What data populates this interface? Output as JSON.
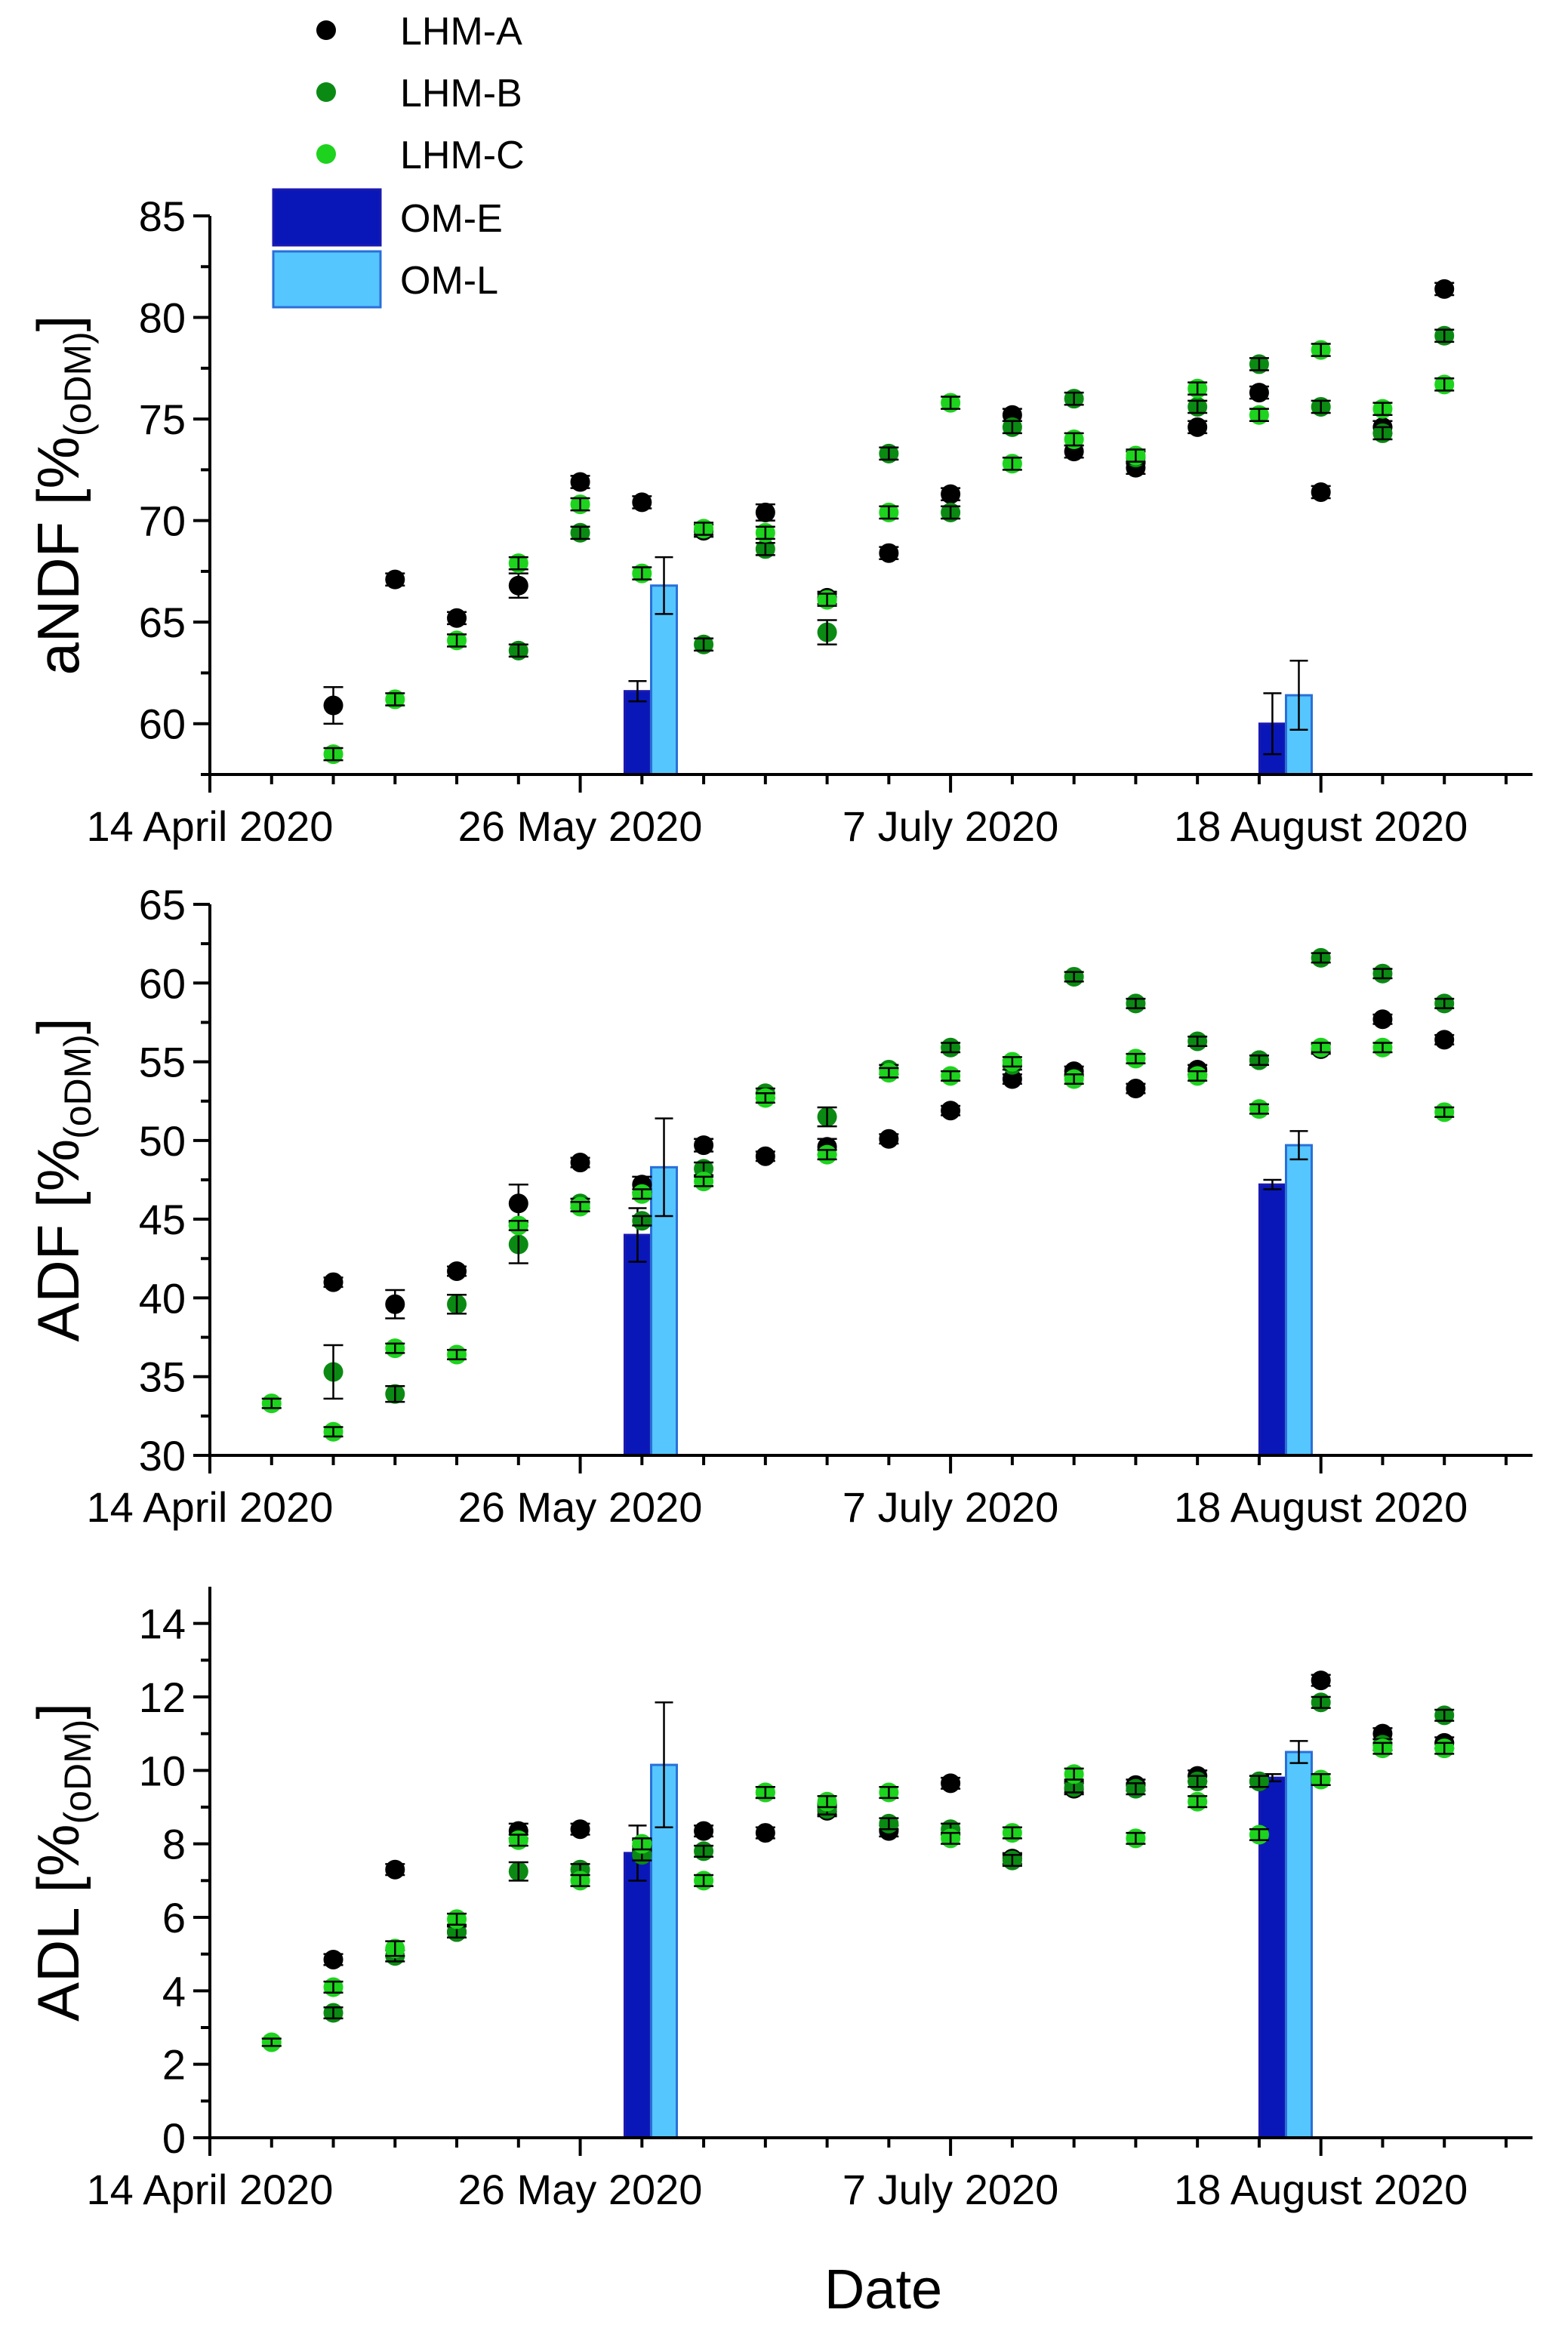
{
  "colors": {
    "LHM-A": "#000000",
    "LHM-B": "#0b8a13",
    "LHM-C": "#1dd31d",
    "OM-E": "#0a17b8",
    "OM-L": "#56c6ff",
    "OM-E-edge": "#1a1ab0",
    "OM-L-edge": "#2a6fd8"
  },
  "legend": {
    "items": [
      {
        "key": "LHM-A",
        "label": "LHM-A",
        "kind": "point"
      },
      {
        "key": "LHM-B",
        "label": "LHM-B",
        "kind": "point"
      },
      {
        "key": "LHM-C",
        "label": "LHM-C",
        "kind": "point"
      },
      {
        "key": "OM-E",
        "label": "OM-E",
        "kind": "bar"
      },
      {
        "key": "OM-L",
        "label": "OM-L",
        "kind": "bar"
      }
    ]
  },
  "x_axis": {
    "title": "Date",
    "tick_labels": [
      "14 April 2020",
      "26 May 2020",
      "7 July 2020",
      "18 August 2020"
    ],
    "major_days": [
      0,
      42,
      84,
      126
    ],
    "minor_days": [
      7,
      14,
      21,
      28,
      35,
      49,
      56,
      63,
      70,
      77,
      91,
      98,
      105,
      112,
      119,
      133,
      140,
      147
    ],
    "xlim_days": [
      0,
      150
    ],
    "day0": "14 April 2020",
    "note": "x values are days since 14 April 2020"
  },
  "chart_data": [
    {
      "type": "scatter",
      "id": "andf",
      "title": "",
      "ylabel_main": "aNDF [%",
      "ylabel_sub": "(oDM)",
      "ylabel_close": "]",
      "ylim": [
        57.5,
        85
      ],
      "yticks": [
        60,
        65,
        70,
        75,
        80,
        85
      ],
      "yticks_minor": [
        57.5,
        62.5,
        67.5,
        72.5,
        77.5,
        82.5
      ],
      "series": [
        {
          "name": "LHM-A",
          "points": [
            [
              14,
              60.9,
              0.9
            ],
            [
              21,
              67.1,
              0.3
            ],
            [
              28,
              65.2,
              0.3
            ],
            [
              35,
              66.8,
              0.6
            ],
            [
              42,
              71.9,
              0.3
            ],
            [
              49,
              70.9,
              0.3
            ],
            [
              56,
              69.5,
              0.3
            ],
            [
              63,
              70.4,
              0.4
            ],
            [
              70,
              66.2,
              0.3
            ],
            [
              77,
              68.4,
              0.3
            ],
            [
              84,
              71.3,
              0.3
            ],
            [
              91,
              75.2,
              0.3
            ],
            [
              98,
              73.4,
              0.3
            ],
            [
              105,
              72.6,
              0.3
            ],
            [
              112,
              74.6,
              0.3
            ],
            [
              119,
              76.3,
              0.3
            ],
            [
              126,
              71.4,
              0.3
            ],
            [
              133,
              74.6,
              0.3
            ],
            [
              140,
              81.4,
              0.3
            ]
          ]
        },
        {
          "name": "LHM-B",
          "points": [
            [
              35,
              63.6,
              0.3
            ],
            [
              42,
              69.4,
              0.3
            ],
            [
              56,
              63.9,
              0.3
            ],
            [
              63,
              68.6,
              0.3
            ],
            [
              70,
              64.5,
              0.6
            ],
            [
              77,
              73.3,
              0.3
            ],
            [
              84,
              70.4,
              0.3
            ],
            [
              91,
              74.6,
              0.3
            ],
            [
              98,
              76.0,
              0.3
            ],
            [
              105,
              73.1,
              0.3
            ],
            [
              112,
              75.6,
              0.3
            ],
            [
              119,
              77.7,
              0.3
            ],
            [
              126,
              75.6,
              0.3
            ],
            [
              133,
              74.3,
              0.3
            ],
            [
              140,
              79.1,
              0.3
            ]
          ]
        },
        {
          "name": "LHM-C",
          "points": [
            [
              14,
              58.5,
              0.3
            ],
            [
              21,
              61.2,
              0.3
            ],
            [
              28,
              64.1,
              0.3
            ],
            [
              35,
              67.9,
              0.3
            ],
            [
              42,
              70.8,
              0.3
            ],
            [
              49,
              67.4,
              0.3
            ],
            [
              56,
              69.6,
              0.3
            ],
            [
              63,
              69.4,
              0.3
            ],
            [
              70,
              66.1,
              0.3
            ],
            [
              77,
              70.4,
              0.3
            ],
            [
              84,
              75.8,
              0.3
            ],
            [
              91,
              72.8,
              0.3
            ],
            [
              98,
              74.0,
              0.3
            ],
            [
              105,
              73.2,
              0.3
            ],
            [
              112,
              76.5,
              0.3
            ],
            [
              119,
              75.2,
              0.3
            ],
            [
              126,
              78.4,
              0.3
            ],
            [
              133,
              75.5,
              0.3
            ],
            [
              140,
              76.7,
              0.3
            ]
          ]
        },
        {
          "name": "OM-E",
          "kind": "bar",
          "points": [
            [
              48.5,
              61.6,
              0.5
            ],
            [
              120.5,
              60.0,
              1.5
            ]
          ]
        },
        {
          "name": "OM-L",
          "kind": "bar",
          "points": [
            [
              51.5,
              66.8,
              1.4
            ],
            [
              123.5,
              61.4,
              1.7
            ]
          ]
        }
      ]
    },
    {
      "type": "scatter",
      "id": "adf",
      "title": "",
      "ylabel_main": "ADF [%",
      "ylabel_sub": "(oDM)",
      "ylabel_close": "]",
      "ylim": [
        30,
        65
      ],
      "yticks": [
        30,
        35,
        40,
        45,
        50,
        55,
        60,
        65
      ],
      "yticks_minor": [
        32.5,
        37.5,
        42.5,
        47.5,
        52.5,
        57.5,
        62.5
      ],
      "series": [
        {
          "name": "LHM-A",
          "points": [
            [
              14,
              41.0,
              0.3
            ],
            [
              21,
              39.6,
              0.9
            ],
            [
              28,
              41.7,
              0.3
            ],
            [
              35,
              46.0,
              1.2
            ],
            [
              42,
              48.6,
              0.3
            ],
            [
              49,
              47.2,
              0.5
            ],
            [
              56,
              49.7,
              0.4
            ],
            [
              63,
              49.0,
              0.3
            ],
            [
              70,
              49.6,
              0.5
            ],
            [
              77,
              50.1,
              0.3
            ],
            [
              84,
              51.9,
              0.3
            ],
            [
              91,
              53.9,
              0.3
            ],
            [
              98,
              54.4,
              0.3
            ],
            [
              105,
              53.3,
              0.3
            ],
            [
              112,
              54.5,
              0.3
            ],
            [
              119,
              55.1,
              0.3
            ],
            [
              126,
              55.8,
              0.3
            ],
            [
              133,
              57.7,
              0.3
            ],
            [
              140,
              56.4,
              0.3
            ]
          ]
        },
        {
          "name": "LHM-B",
          "points": [
            [
              14,
              35.3,
              1.7
            ],
            [
              21,
              33.9,
              0.5
            ],
            [
              28,
              39.6,
              0.6
            ],
            [
              35,
              43.4,
              1.2
            ],
            [
              42,
              46.0,
              0.3
            ],
            [
              49,
              44.9,
              0.3
            ],
            [
              56,
              48.2,
              0.4
            ],
            [
              63,
              53.0,
              0.3
            ],
            [
              70,
              51.5,
              0.6
            ],
            [
              77,
              54.5,
              0.3
            ],
            [
              84,
              55.9,
              0.3
            ],
            [
              91,
              54.8,
              0.3
            ],
            [
              98,
              60.4,
              0.3
            ],
            [
              105,
              58.7,
              0.3
            ],
            [
              112,
              56.3,
              0.3
            ],
            [
              119,
              55.1,
              0.3
            ],
            [
              126,
              61.6,
              0.3
            ],
            [
              133,
              60.6,
              0.3
            ],
            [
              140,
              58.7,
              0.3
            ]
          ]
        },
        {
          "name": "LHM-C",
          "points": [
            [
              7,
              33.3,
              0.3
            ],
            [
              14,
              31.5,
              0.3
            ],
            [
              21,
              36.8,
              0.3
            ],
            [
              28,
              36.4,
              0.3
            ],
            [
              35,
              44.6,
              0.3
            ],
            [
              42,
              45.8,
              0.3
            ],
            [
              49,
              46.6,
              0.3
            ],
            [
              56,
              47.4,
              0.3
            ],
            [
              63,
              52.7,
              0.3
            ],
            [
              70,
              49.1,
              0.3
            ],
            [
              77,
              54.3,
              0.3
            ],
            [
              84,
              54.1,
              0.3
            ],
            [
              91,
              55.0,
              0.3
            ],
            [
              98,
              53.9,
              0.3
            ],
            [
              105,
              55.2,
              0.3
            ],
            [
              112,
              54.1,
              0.3
            ],
            [
              119,
              52.0,
              0.3
            ],
            [
              126,
              55.9,
              0.3
            ],
            [
              133,
              55.9,
              0.3
            ],
            [
              140,
              51.8,
              0.3
            ]
          ]
        },
        {
          "name": "OM-E",
          "kind": "bar",
          "points": [
            [
              48.5,
              44.0,
              1.7
            ],
            [
              120.5,
              47.2,
              0.3
            ]
          ]
        },
        {
          "name": "OM-L",
          "kind": "bar",
          "points": [
            [
              51.5,
              48.3,
              3.1
            ],
            [
              123.5,
              49.7,
              0.9
            ]
          ]
        }
      ]
    },
    {
      "type": "scatter",
      "id": "adl",
      "title": "",
      "ylabel_main": "ADL [%",
      "ylabel_sub": "(oDM)",
      "ylabel_close": "]",
      "ylim": [
        0,
        15
      ],
      "yticks": [
        0,
        2,
        4,
        6,
        8,
        10,
        12,
        14
      ],
      "yticks_minor": [
        1,
        3,
        5,
        7,
        9,
        11,
        13
      ],
      "series": [
        {
          "name": "LHM-A",
          "points": [
            [
              14,
              4.85,
              0.15
            ],
            [
              21,
              7.3,
              0.15
            ],
            [
              28,
              5.6,
              0.15
            ],
            [
              35,
              8.35,
              0.2
            ],
            [
              42,
              8.4,
              0.15
            ],
            [
              49,
              7.95,
              0.15
            ],
            [
              56,
              8.35,
              0.15
            ],
            [
              63,
              8.3,
              0.15
            ],
            [
              70,
              8.9,
              0.15
            ],
            [
              77,
              8.35,
              0.15
            ],
            [
              84,
              9.65,
              0.15
            ],
            [
              91,
              7.6,
              0.15
            ],
            [
              98,
              9.5,
              0.15
            ],
            [
              105,
              9.6,
              0.15
            ],
            [
              112,
              9.85,
              0.15
            ],
            [
              119,
              9.7,
              0.15
            ],
            [
              126,
              12.45,
              0.15
            ],
            [
              133,
              11.0,
              0.15
            ],
            [
              140,
              10.75,
              0.15
            ]
          ]
        },
        {
          "name": "LHM-B",
          "points": [
            [
              14,
              3.4,
              0.15
            ],
            [
              21,
              4.95,
              0.15
            ],
            [
              28,
              5.6,
              0.15
            ],
            [
              35,
              7.25,
              0.25
            ],
            [
              42,
              7.3,
              0.15
            ],
            [
              49,
              7.7,
              0.15
            ],
            [
              56,
              7.8,
              0.15
            ],
            [
              63,
              9.4,
              0.15
            ],
            [
              70,
              8.95,
              0.15
            ],
            [
              77,
              8.55,
              0.15
            ],
            [
              84,
              8.4,
              0.15
            ],
            [
              91,
              7.55,
              0.15
            ],
            [
              98,
              9.55,
              0.15
            ],
            [
              105,
              9.5,
              0.15
            ],
            [
              112,
              9.7,
              0.15
            ],
            [
              119,
              9.7,
              0.15
            ],
            [
              126,
              11.85,
              0.15
            ],
            [
              133,
              10.7,
              0.15
            ],
            [
              140,
              11.5,
              0.15
            ]
          ]
        },
        {
          "name": "LHM-C",
          "points": [
            [
              7,
              2.6,
              0.1
            ],
            [
              14,
              4.1,
              0.15
            ],
            [
              21,
              5.15,
              0.2
            ],
            [
              28,
              5.95,
              0.15
            ],
            [
              35,
              8.1,
              0.15
            ],
            [
              42,
              7.0,
              0.15
            ],
            [
              49,
              8.0,
              0.15
            ],
            [
              56,
              7.0,
              0.15
            ],
            [
              63,
              9.4,
              0.15
            ],
            [
              70,
              9.15,
              0.15
            ],
            [
              77,
              9.4,
              0.15
            ],
            [
              84,
              8.15,
              0.15
            ],
            [
              91,
              8.3,
              0.15
            ],
            [
              98,
              9.9,
              0.15
            ],
            [
              105,
              8.15,
              0.15
            ],
            [
              112,
              9.15,
              0.15
            ],
            [
              119,
              8.25,
              0.15
            ],
            [
              126,
              9.75,
              0.15
            ],
            [
              133,
              10.6,
              0.15
            ],
            [
              140,
              10.6,
              0.15
            ]
          ]
        },
        {
          "name": "OM-E",
          "kind": "bar",
          "points": [
            [
              48.5,
              7.75,
              0.75
            ],
            [
              120.5,
              9.8,
              0.1
            ]
          ]
        },
        {
          "name": "OM-L",
          "kind": "bar",
          "points": [
            [
              51.5,
              10.15,
              1.7
            ],
            [
              123.5,
              10.5,
              0.3
            ]
          ]
        }
      ]
    }
  ]
}
